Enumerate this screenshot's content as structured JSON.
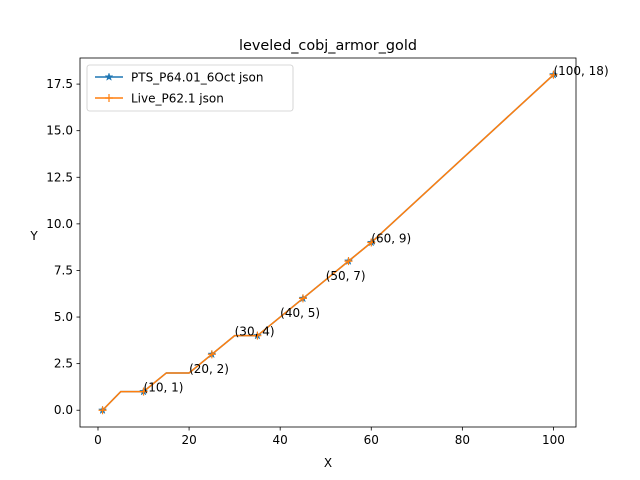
{
  "chart_data": {
    "type": "line",
    "title": "leveled_cobj_armor_gold",
    "xlabel": "X",
    "ylabel": "Y",
    "xlim": [
      -3.95,
      104.95
    ],
    "ylim": [
      -0.9,
      18.9
    ],
    "xticks": [
      0,
      20,
      40,
      60,
      80,
      100
    ],
    "yticks": [
      0.0,
      2.5,
      5.0,
      7.5,
      10.0,
      12.5,
      15.0,
      17.5
    ],
    "ytick_labels": [
      "0.0",
      "2.5",
      "5.0",
      "7.5",
      "10.0",
      "12.5",
      "15.0",
      "17.5"
    ],
    "grid": false,
    "legend_position": "top-left",
    "series": [
      {
        "name": "PTS_P64.01_6Oct json",
        "color": "#1f77b4",
        "marker": "star",
        "x": [
          1,
          5,
          10,
          15,
          20,
          25,
          30,
          35,
          40,
          45,
          50,
          55,
          60,
          100
        ],
        "y": [
          0,
          1,
          1,
          2,
          2,
          3,
          4,
          4,
          5,
          6,
          7,
          8,
          9,
          18
        ]
      },
      {
        "name": "Live_P62.1 json",
        "color": "#ff7f0e",
        "marker": "plus",
        "x": [
          1,
          5,
          10,
          15,
          20,
          25,
          30,
          35,
          40,
          45,
          50,
          55,
          60,
          100
        ],
        "y": [
          0,
          1,
          1,
          2,
          2,
          3,
          4,
          4,
          5,
          6,
          7,
          8,
          9,
          18
        ]
      }
    ],
    "marker_x": [
      1,
      10,
      25,
      35,
      45,
      55,
      60,
      100
    ],
    "annotations": [
      {
        "text": "(10, 1)",
        "x": 10,
        "y": 1
      },
      {
        "text": "(20, 2)",
        "x": 20,
        "y": 2
      },
      {
        "text": "(30, 4)",
        "x": 30,
        "y": 4
      },
      {
        "text": "(40, 5)",
        "x": 40,
        "y": 5
      },
      {
        "text": "(50, 7)",
        "x": 50,
        "y": 7
      },
      {
        "text": "(60, 9)",
        "x": 60,
        "y": 9
      },
      {
        "text": "(100, 18)",
        "x": 100,
        "y": 18
      }
    ]
  }
}
